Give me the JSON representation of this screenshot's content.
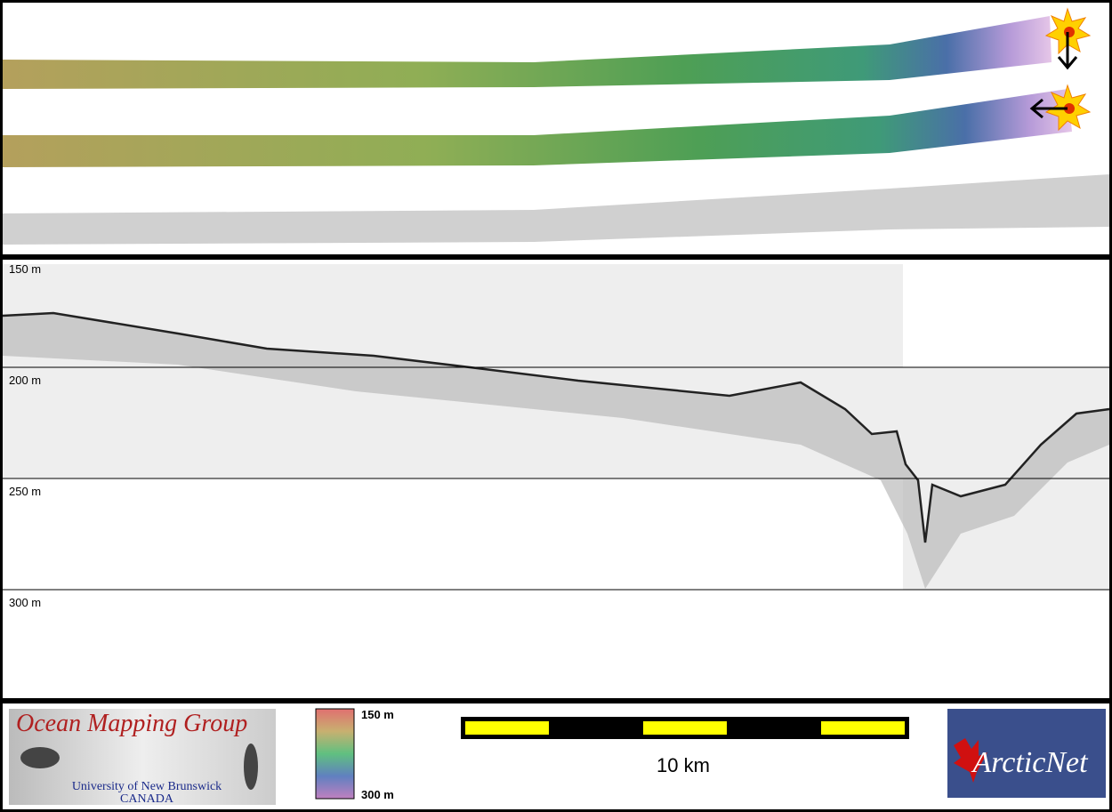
{
  "profile": {
    "depth_labels": [
      "150 m",
      "200 m",
      "250 m",
      "300 m"
    ]
  },
  "colorbar": {
    "top": "150 m",
    "bottom": "300 m"
  },
  "scale_bar": {
    "label": "10 km"
  },
  "logos": {
    "omg_title": "Ocean Mapping Group",
    "omg_university": "University of New Brunswick",
    "omg_country": "CANADA",
    "arcticnet": "ArcticNet"
  }
}
